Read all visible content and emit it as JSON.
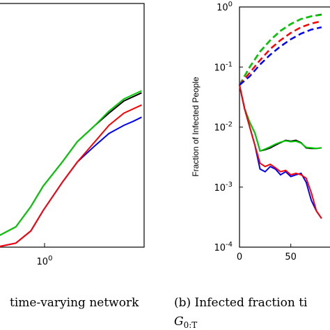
{
  "chart_data": [
    {
      "type": "line",
      "xscale": "log",
      "x_tick_labels": [
        {
          "base": "10",
          "exp": "0"
        }
      ],
      "caption": "time-varying network",
      "series": [
        {
          "color": "#000000",
          "x": [
            0.3,
            0.4,
            0.5,
            0.6,
            0.8,
            1.0,
            1.3,
            1.6,
            2.0,
            2.6
          ],
          "values": [
            0.05,
            0.1,
            0.2,
            0.3,
            0.42,
            0.52,
            0.6,
            0.66,
            0.72,
            0.76
          ]
        },
        {
          "color": "#00cc00",
          "x": [
            0.3,
            0.4,
            0.5,
            0.6,
            0.8,
            1.0,
            1.3,
            1.6,
            2.0,
            2.6
          ],
          "values": [
            0.05,
            0.1,
            0.2,
            0.3,
            0.42,
            0.52,
            0.6,
            0.67,
            0.73,
            0.77
          ]
        },
        {
          "color": "#0000ff",
          "x": [
            0.3,
            0.4,
            0.5,
            0.6,
            0.8,
            1.0,
            1.3,
            1.6,
            2.0,
            2.3,
            2.6
          ],
          "values": [
            0.0,
            0.02,
            0.08,
            0.18,
            0.32,
            0.42,
            0.5,
            0.56,
            0.6,
            0.62,
            0.64
          ]
        },
        {
          "color": "#ff0000",
          "x": [
            0.3,
            0.4,
            0.5,
            0.6,
            0.8,
            1.0,
            1.3,
            1.6,
            2.0,
            2.6
          ],
          "values": [
            0.0,
            0.02,
            0.08,
            0.18,
            0.32,
            0.42,
            0.52,
            0.6,
            0.66,
            0.7
          ]
        }
      ]
    },
    {
      "type": "line",
      "yscale": "log",
      "ylabel": "Fraction of Infected People",
      "x_ticks": [
        0,
        50
      ],
      "y_ticks": [
        {
          "value": 0.0001,
          "base": "10",
          "exp": "-4"
        },
        {
          "value": 0.001,
          "base": "10",
          "exp": "-3"
        },
        {
          "value": 0.01,
          "base": "10",
          "exp": "-2"
        },
        {
          "value": 0.1,
          "base": "10",
          "exp": "-1"
        },
        {
          "value": 1,
          "base": "10",
          "exp": "0"
        }
      ],
      "caption_prefix": "(b) Infected fraction ti",
      "caption_math": {
        "main": "G",
        "sub": "0:T"
      },
      "series": [
        {
          "color": "#000000",
          "dashed": true,
          "x": [
            0,
            10,
            20,
            30,
            40,
            50,
            60,
            70,
            80
          ],
          "values": [
            0.05,
            0.1,
            0.18,
            0.28,
            0.4,
            0.52,
            0.63,
            0.7,
            0.75
          ]
        },
        {
          "color": "#00cc00",
          "dashed": true,
          "x": [
            0,
            10,
            20,
            30,
            40,
            50,
            60,
            70,
            80
          ],
          "values": [
            0.05,
            0.1,
            0.18,
            0.28,
            0.4,
            0.52,
            0.63,
            0.7,
            0.74
          ]
        },
        {
          "color": "#ff0000",
          "dashed": true,
          "x": [
            0,
            10,
            20,
            30,
            40,
            50,
            60,
            70,
            80
          ],
          "values": [
            0.05,
            0.08,
            0.13,
            0.2,
            0.28,
            0.37,
            0.46,
            0.53,
            0.58
          ]
        },
        {
          "color": "#0000ff",
          "dashed": true,
          "x": [
            0,
            10,
            20,
            30,
            40,
            50,
            60,
            70,
            80
          ],
          "values": [
            0.05,
            0.07,
            0.11,
            0.16,
            0.22,
            0.29,
            0.36,
            0.42,
            0.46
          ]
        },
        {
          "color": "#000000",
          "x": [
            0,
            5,
            10,
            15,
            20,
            25,
            30,
            35,
            40,
            45,
            50,
            55,
            60,
            65,
            70,
            75,
            80
          ],
          "values": [
            0.05,
            0.02,
            0.012,
            0.008,
            0.004,
            0.0042,
            0.0045,
            0.005,
            0.0055,
            0.006,
            0.0058,
            0.006,
            0.0055,
            0.0045,
            0.0044,
            0.0044,
            0.0045
          ]
        },
        {
          "color": "#00cc00",
          "x": [
            0,
            5,
            10,
            15,
            20,
            25,
            30,
            35,
            40,
            45,
            50,
            55,
            60,
            65,
            70,
            75,
            80
          ],
          "values": [
            0.05,
            0.02,
            0.012,
            0.008,
            0.004,
            0.0043,
            0.0047,
            0.0052,
            0.0056,
            0.0059,
            0.0057,
            0.0058,
            0.0054,
            0.0046,
            0.0045,
            0.0044,
            0.0045
          ]
        },
        {
          "color": "#0000ff",
          "x": [
            0,
            5,
            10,
            15,
            20,
            25,
            30,
            35,
            40,
            45,
            50,
            55,
            60,
            65,
            70,
            75,
            80
          ],
          "values": [
            0.05,
            0.02,
            0.01,
            0.005,
            0.002,
            0.0018,
            0.0022,
            0.002,
            0.0016,
            0.0018,
            0.0015,
            0.0016,
            0.0017,
            0.0012,
            0.0006,
            0.0004,
            0.0003
          ]
        },
        {
          "color": "#ff0000",
          "x": [
            0,
            5,
            10,
            15,
            20,
            25,
            30,
            35,
            40,
            45,
            50,
            55,
            60,
            65,
            70,
            75,
            80
          ],
          "values": [
            0.05,
            0.02,
            0.01,
            0.005,
            0.0025,
            0.0022,
            0.0024,
            0.0021,
            0.0018,
            0.0019,
            0.0016,
            0.0017,
            0.0016,
            0.0014,
            0.0008,
            0.0004,
            0.0003
          ]
        }
      ]
    }
  ]
}
